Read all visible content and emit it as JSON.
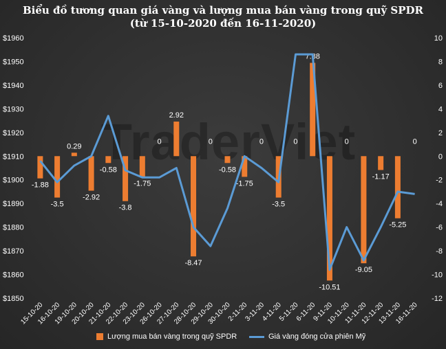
{
  "title_line1": "Biểu đồ tương quan giá vàng và lượng mua bán vàng trong quỹ SPDR",
  "title_line2": "(từ 15-10-2020 đến 16-11-2020)",
  "watermark": "TraderViet",
  "colors": {
    "bar": "#ed7d31",
    "line": "#5b9bd5",
    "text": "#ffffff",
    "background": "#2b2b2b"
  },
  "chart_data": {
    "type": "bar",
    "title": "Biểu đồ tương quan giá vàng và lượng mua bán vàng trong quỹ SPDR (từ 15-10-2020 đến 16-11-2020)",
    "categories": [
      "15-10-20",
      "16-10-20",
      "19-10-20",
      "20-10-20",
      "21-10-20",
      "22-10-20",
      "23-10-20",
      "26-10-20",
      "27-10-20",
      "28-10-20",
      "29-10-20",
      "30-10-20",
      "2-11-20",
      "3-11-20",
      "4-11-20",
      "5-11-20",
      "6-11-20",
      "9-11-20",
      "10-11-20",
      "11-11-20",
      "12-11-20",
      "13-11-20",
      "16-11-20"
    ],
    "series": [
      {
        "name": "Lượng mua bán vàng trong quỹ SPDR",
        "type": "bar",
        "axis": "right",
        "values": [
          -1.88,
          -3.5,
          0.29,
          -2.92,
          -0.58,
          -3.8,
          -1.75,
          0,
          2.92,
          -8.47,
          0,
          -0.58,
          -1.75,
          0,
          -3.5,
          0,
          7.88,
          -10.51,
          0,
          -9.05,
          -1.17,
          -5.25,
          0
        ],
        "labels": [
          "-1.88",
          "-3.5",
          "0.29",
          "-2.92",
          "-0.58",
          "-3.8",
          "-1.75",
          "0",
          "2.92",
          "-8.47",
          "0",
          "-0.58",
          "-1.75",
          "0",
          "-3.5",
          "0",
          "7.88",
          "-10.51",
          "0",
          "-9.05",
          "-1.17",
          "-5.25",
          "0"
        ]
      },
      {
        "name": "Giá vàng đóng cửa phiên Mỹ",
        "type": "line",
        "axis": "left",
        "values": [
          1908,
          1899,
          1906,
          1910,
          1927,
          1904,
          1901,
          1901,
          1905,
          1880,
          1872,
          1888,
          1910,
          1905,
          1899,
          1953,
          1953,
          1862,
          1880,
          1866,
          1880,
          1895,
          1894
        ]
      }
    ],
    "left_axis": {
      "min": 1850,
      "max": 1960,
      "step": 10,
      "tick_labels": [
        "$1960",
        "$1950",
        "$1940",
        "$1930",
        "$1920",
        "$1910",
        "$1900",
        "$1890",
        "$1880",
        "$1870",
        "$1860",
        "$1850"
      ]
    },
    "right_axis": {
      "min": -12,
      "max": 10,
      "step": 2,
      "tick_labels": [
        "10",
        "8",
        "6",
        "4",
        "2",
        "0",
        "-2",
        "-4",
        "-6",
        "-8",
        "-10",
        "-12"
      ]
    },
    "legend_position": "bottom",
    "grid": false
  }
}
